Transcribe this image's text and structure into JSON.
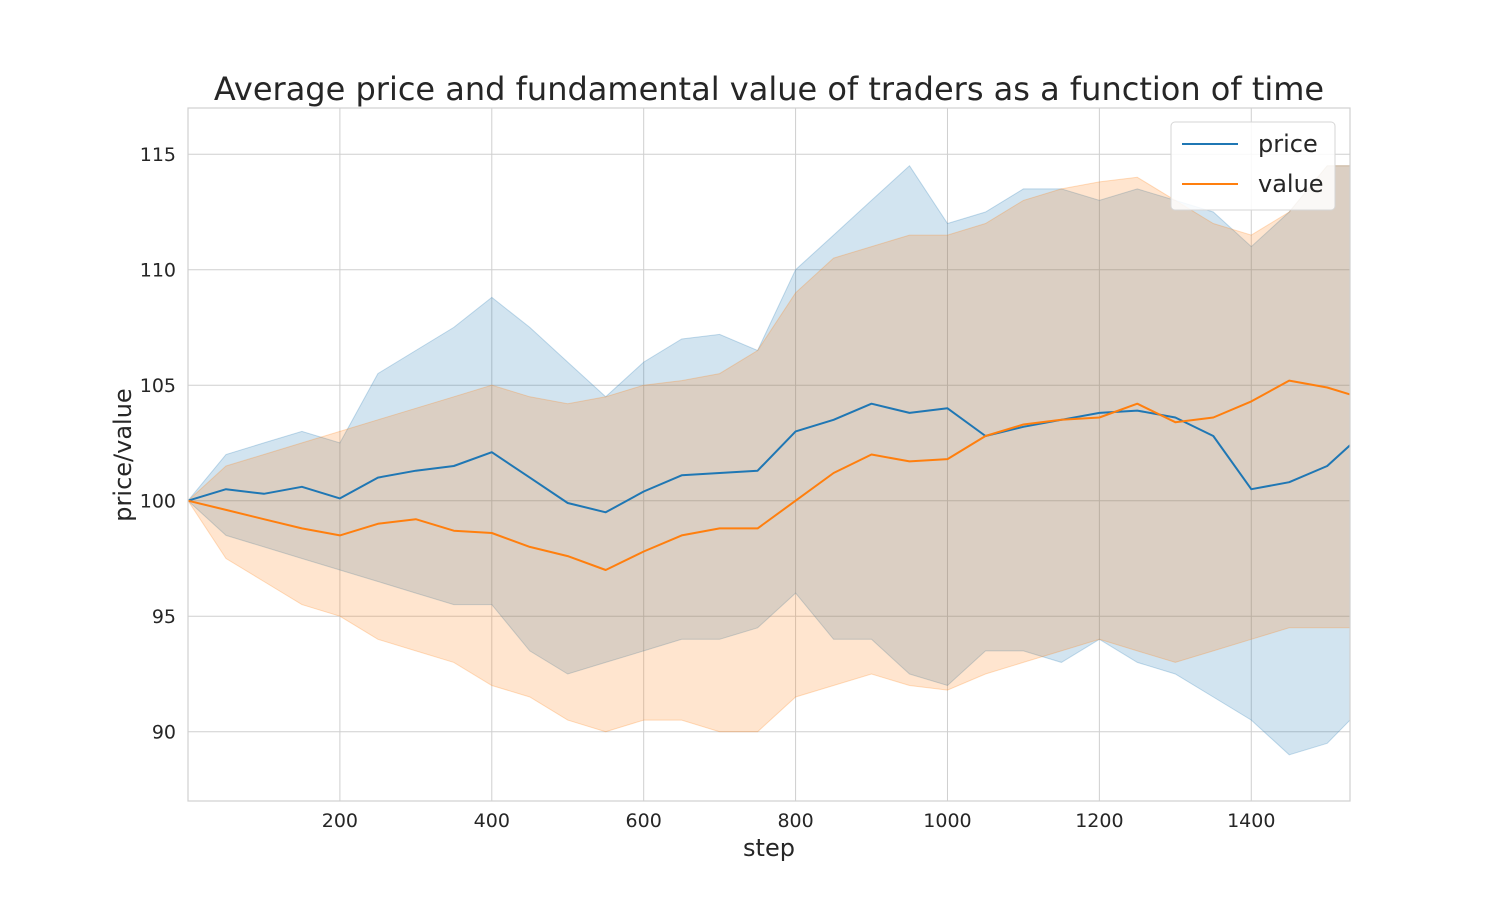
{
  "chart_data": {
    "type": "line",
    "title": "Average price and fundamental value of traders as a function of time",
    "xlabel": "step",
    "ylabel": "price/value",
    "xlim": [
      0,
      1530
    ],
    "ylim": [
      87,
      117
    ],
    "x_ticks": [
      200,
      400,
      600,
      800,
      1000,
      1200,
      1400
    ],
    "y_ticks": [
      90,
      95,
      100,
      105,
      110,
      115
    ],
    "grid": true,
    "legend_position": "top-right",
    "bands": "shaded region around each line spanning lower to upper envelope",
    "x": [
      0,
      50,
      100,
      150,
      200,
      250,
      300,
      350,
      400,
      450,
      500,
      550,
      600,
      650,
      700,
      750,
      800,
      850,
      900,
      950,
      1000,
      1050,
      1100,
      1150,
      1200,
      1250,
      1300,
      1350,
      1400,
      1450,
      1500,
      1530
    ],
    "series": [
      {
        "name": "price",
        "color": "#1f77b4",
        "values": [
          100.0,
          100.5,
          100.3,
          100.6,
          100.1,
          101.0,
          101.3,
          101.5,
          102.1,
          101.0,
          99.9,
          99.5,
          100.4,
          101.1,
          101.2,
          101.3,
          103.0,
          103.5,
          104.2,
          103.8,
          104.0,
          102.8,
          103.2,
          103.5,
          103.8,
          103.9,
          103.6,
          102.8,
          100.5,
          100.8,
          101.5,
          102.4
        ],
        "upper": [
          100.0,
          102.0,
          102.5,
          103.0,
          102.5,
          105.5,
          106.5,
          107.5,
          108.8,
          107.5,
          106.0,
          104.5,
          106.0,
          107.0,
          107.2,
          106.5,
          110.0,
          111.5,
          113.0,
          114.5,
          112.0,
          112.5,
          113.5,
          113.5,
          113.0,
          113.5,
          113.0,
          112.5,
          111.0,
          112.5,
          114.5,
          114.5
        ],
        "lower": [
          100.0,
          98.5,
          98.0,
          97.5,
          97.0,
          96.5,
          96.0,
          95.5,
          95.5,
          93.5,
          92.5,
          93.0,
          93.5,
          94.0,
          94.0,
          94.5,
          96.0,
          94.0,
          94.0,
          92.5,
          92.0,
          93.5,
          93.5,
          93.0,
          94.0,
          93.0,
          92.5,
          91.5,
          90.5,
          89.0,
          89.5,
          90.5
        ]
      },
      {
        "name": "value",
        "color": "#ff7f0e",
        "values": [
          100.0,
          99.6,
          99.2,
          98.8,
          98.5,
          99.0,
          99.2,
          98.7,
          98.6,
          98.0,
          97.6,
          97.0,
          97.8,
          98.5,
          98.8,
          98.8,
          100.0,
          101.2,
          102.0,
          101.7,
          101.8,
          102.8,
          103.3,
          103.5,
          103.6,
          104.2,
          103.4,
          103.6,
          104.3,
          105.2,
          104.9,
          104.6
        ],
        "upper": [
          100.0,
          101.5,
          102.0,
          102.5,
          103.0,
          103.5,
          104.0,
          104.5,
          105.0,
          104.5,
          104.2,
          104.5,
          105.0,
          105.2,
          105.5,
          106.5,
          109.0,
          110.5,
          111.0,
          111.5,
          111.5,
          112.0,
          113.0,
          113.5,
          113.8,
          114.0,
          113.0,
          112.0,
          111.5,
          112.5,
          114.5,
          114.5
        ],
        "lower": [
          100.0,
          97.5,
          96.5,
          95.5,
          95.0,
          94.0,
          93.5,
          93.0,
          92.0,
          91.5,
          90.5,
          90.0,
          90.5,
          90.5,
          90.0,
          90.0,
          91.5,
          92.0,
          92.5,
          92.0,
          91.8,
          92.5,
          93.0,
          93.5,
          94.0,
          93.5,
          93.0,
          93.5,
          94.0,
          94.5,
          94.5,
          94.5
        ]
      }
    ]
  }
}
